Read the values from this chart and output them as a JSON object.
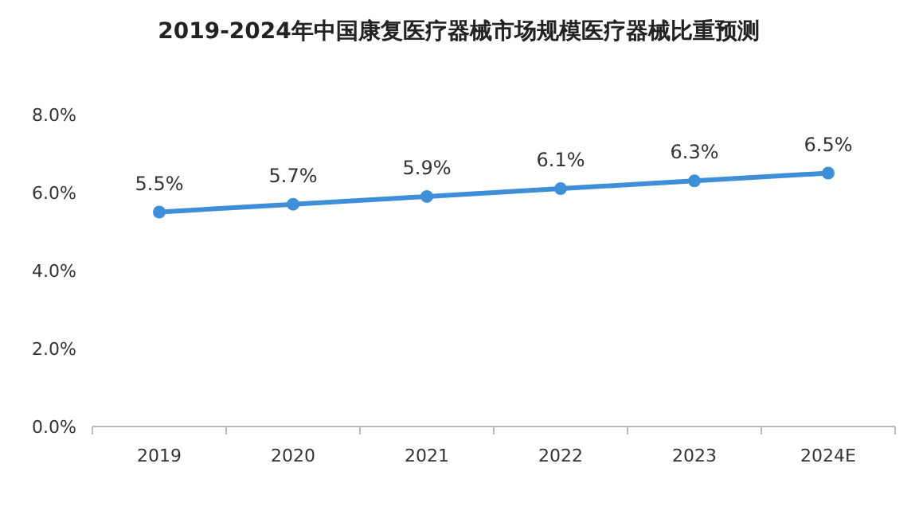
{
  "chart_data": {
    "type": "line",
    "title": "2019-2024年中国康复医疗器械市场规模医疗器械比重预测",
    "categories": [
      "2019",
      "2020",
      "2021",
      "2022",
      "2023",
      "2024E"
    ],
    "series": [
      {
        "color": "#3f8fd8",
        "values": [
          5.5,
          5.7,
          5.9,
          6.1,
          6.3,
          6.5
        ],
        "value_labels": [
          "5.5%",
          "5.7%",
          "5.9%",
          "6.1%",
          "6.3%",
          "6.5%"
        ]
      }
    ],
    "ylim": [
      0,
      8
    ],
    "yticks": [
      {
        "value": 0,
        "label": "0.0%"
      },
      {
        "value": 2,
        "label": "2.0%"
      },
      {
        "value": 4,
        "label": "4.0%"
      },
      {
        "value": 6,
        "label": "6.0%"
      },
      {
        "value": 8,
        "label": "8.0%"
      }
    ],
    "marker": "circle",
    "line_style": "solid"
  }
}
